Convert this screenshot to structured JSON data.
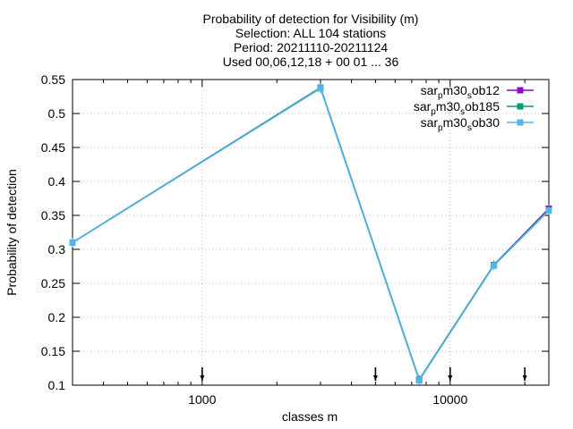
{
  "chart_data": {
    "type": "line",
    "title_lines": [
      "Probability of detection  for Visibility (m)",
      "Selection: ALL     104 stations",
      "Period: 20211110-20211124",
      "Used 00,06,12,18 + 00 01 ... 36"
    ],
    "xlabel": "classes m",
    "ylabel": "Probability of detection",
    "xscale": "log",
    "xlim": [
      300,
      25000
    ],
    "ylim": [
      0.1,
      0.55
    ],
    "grid": true,
    "legend_placement": "top-right",
    "y_ticks": [
      "0.1",
      "0.15",
      "0.2",
      "0.25",
      "0.3",
      "0.35",
      "0.4",
      "0.45",
      "0.5",
      "0.55"
    ],
    "x_ticks": [
      "1000",
      "10000"
    ],
    "x": [
      300,
      3000,
      7500,
      15000,
      25000
    ],
    "series": [
      {
        "name": "sar_p m30_s ob12",
        "base": "sar",
        "sub1": "p",
        "mid": "m30",
        "sub2": "s",
        "tail": "ob12",
        "color": "#9400d3",
        "values": [
          0.31,
          0.538,
          0.108,
          0.277,
          0.36
        ]
      },
      {
        "name": "sar_p m30_s ob185",
        "base": "sar",
        "sub1": "p",
        "mid": "m30",
        "sub2": "s",
        "tail": "ob185",
        "color": "#009e73",
        "values": [
          0.31,
          0.538,
          0.108,
          0.277,
          0.358
        ]
      },
      {
        "name": "sar_p m30_s ob30",
        "base": "sar",
        "sub1": "p",
        "mid": "m30",
        "sub2": "s",
        "tail": "ob30",
        "color": "#56b4e9",
        "values": [
          0.31,
          0.537,
          0.107,
          0.276,
          0.357
        ]
      }
    ],
    "count_markers_x": [
      1000,
      5000,
      10000,
      20000
    ]
  }
}
